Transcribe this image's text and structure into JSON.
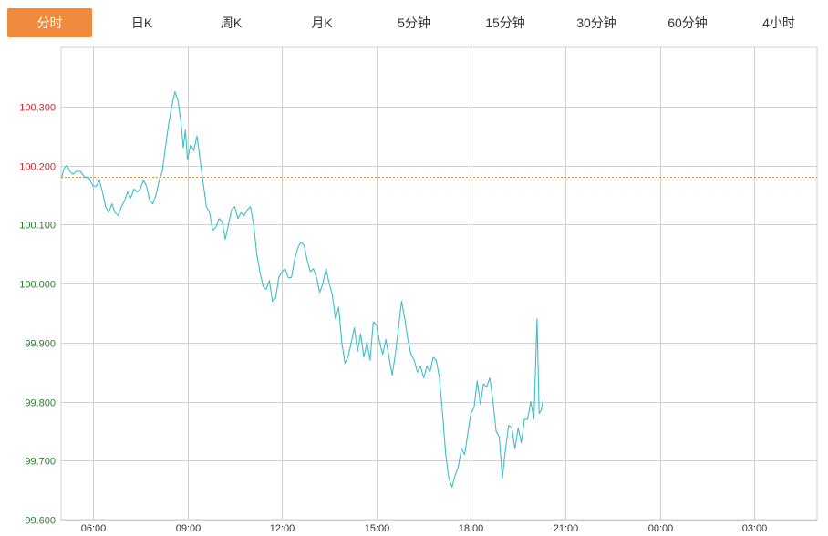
{
  "tabs": [
    {
      "label": "分时",
      "active": true
    },
    {
      "label": "日K",
      "active": false
    },
    {
      "label": "周K",
      "active": false
    },
    {
      "label": "月K",
      "active": false
    },
    {
      "label": "5分钟",
      "active": false
    },
    {
      "label": "15分钟",
      "active": false
    },
    {
      "label": "30分钟",
      "active": false
    },
    {
      "label": "60分钟",
      "active": false
    },
    {
      "label": "4小时",
      "active": false
    }
  ],
  "colors": {
    "line": "#3cbfc8",
    "reference": "#f08a3c",
    "up": "#d9232a",
    "down": "#2e7d32",
    "grid": "#d0d0d0",
    "active_tab": "#f08a3c"
  },
  "chart_data": {
    "type": "line",
    "x_ticks": [
      "06:00",
      "09:00",
      "12:00",
      "15:00",
      "18:00",
      "21:00",
      "00:00",
      "03:00"
    ],
    "y_ticks": [
      "100.300",
      "100.200",
      "100.100",
      "100.000",
      "99.900",
      "99.800",
      "99.700",
      "99.600"
    ],
    "y_tick_values": [
      100.3,
      100.2,
      100.1,
      100.0,
      99.9,
      99.8,
      99.7,
      99.6
    ],
    "ylim": [
      99.6,
      100.4
    ],
    "xlim_hours_from_0500": [
      0,
      24
    ],
    "reference_value": 100.18,
    "series": [
      {
        "points": [
          [
            "05:00",
            100.18
          ],
          [
            "05:05",
            100.195
          ],
          [
            "05:10",
            100.2
          ],
          [
            "05:16",
            100.19
          ],
          [
            "05:22",
            100.185
          ],
          [
            "05:28",
            100.19
          ],
          [
            "05:36",
            100.19
          ],
          [
            "05:44",
            100.18
          ],
          [
            "05:52",
            100.18
          ],
          [
            "06:00",
            100.165
          ],
          [
            "06:06",
            100.165
          ],
          [
            "06:12",
            100.175
          ],
          [
            "06:18",
            100.155
          ],
          [
            "06:24",
            100.13
          ],
          [
            "06:30",
            100.12
          ],
          [
            "06:36",
            100.135
          ],
          [
            "06:42",
            100.12
          ],
          [
            "06:48",
            100.115
          ],
          [
            "06:54",
            100.13
          ],
          [
            "07:00",
            100.14
          ],
          [
            "07:06",
            100.155
          ],
          [
            "07:12",
            100.145
          ],
          [
            "07:18",
            100.16
          ],
          [
            "07:24",
            100.155
          ],
          [
            "07:30",
            100.16
          ],
          [
            "07:36",
            100.175
          ],
          [
            "07:42",
            100.165
          ],
          [
            "07:48",
            100.14
          ],
          [
            "07:54",
            100.135
          ],
          [
            "08:00",
            100.15
          ],
          [
            "08:06",
            100.175
          ],
          [
            "08:12",
            100.19
          ],
          [
            "08:18",
            100.23
          ],
          [
            "08:24",
            100.27
          ],
          [
            "08:30",
            100.3
          ],
          [
            "08:36",
            100.325
          ],
          [
            "08:42",
            100.31
          ],
          [
            "08:48",
            100.27
          ],
          [
            "08:52",
            100.23
          ],
          [
            "08:56",
            100.26
          ],
          [
            "09:00",
            100.21
          ],
          [
            "09:06",
            100.235
          ],
          [
            "09:12",
            100.225
          ],
          [
            "09:18",
            100.25
          ],
          [
            "09:24",
            100.21
          ],
          [
            "09:30",
            100.17
          ],
          [
            "09:36",
            100.13
          ],
          [
            "09:42",
            100.12
          ],
          [
            "09:48",
            100.09
          ],
          [
            "09:54",
            100.095
          ],
          [
            "10:00",
            100.11
          ],
          [
            "10:06",
            100.105
          ],
          [
            "10:12",
            100.075
          ],
          [
            "10:18",
            100.1
          ],
          [
            "10:24",
            100.125
          ],
          [
            "10:30",
            100.13
          ],
          [
            "10:36",
            100.11
          ],
          [
            "10:42",
            100.12
          ],
          [
            "10:48",
            100.115
          ],
          [
            "10:54",
            100.125
          ],
          [
            "11:00",
            100.13
          ],
          [
            "11:06",
            100.1
          ],
          [
            "11:12",
            100.05
          ],
          [
            "11:18",
            100.02
          ],
          [
            "11:24",
            99.995
          ],
          [
            "11:30",
            99.99
          ],
          [
            "11:36",
            100.005
          ],
          [
            "11:42",
            99.97
          ],
          [
            "11:48",
            99.975
          ],
          [
            "11:54",
            100.01
          ],
          [
            "12:00",
            100.02
          ],
          [
            "12:06",
            100.025
          ],
          [
            "12:12",
            100.01
          ],
          [
            "12:18",
            100.01
          ],
          [
            "12:24",
            100.04
          ],
          [
            "12:30",
            100.06
          ],
          [
            "12:36",
            100.07
          ],
          [
            "12:42",
            100.065
          ],
          [
            "12:48",
            100.04
          ],
          [
            "12:54",
            100.02
          ],
          [
            "13:00",
            100.025
          ],
          [
            "13:06",
            100.01
          ],
          [
            "13:12",
            99.985
          ],
          [
            "13:18",
            100.0
          ],
          [
            "13:24",
            100.025
          ],
          [
            "13:30",
            100.0
          ],
          [
            "13:36",
            99.98
          ],
          [
            "13:42",
            99.94
          ],
          [
            "13:48",
            99.96
          ],
          [
            "13:54",
            99.9
          ],
          [
            "14:00",
            99.865
          ],
          [
            "14:06",
            99.875
          ],
          [
            "14:12",
            99.9
          ],
          [
            "14:18",
            99.925
          ],
          [
            "14:24",
            99.885
          ],
          [
            "14:30",
            99.915
          ],
          [
            "14:36",
            99.875
          ],
          [
            "14:42",
            99.9
          ],
          [
            "14:48",
            99.87
          ],
          [
            "14:54",
            99.935
          ],
          [
            "15:00",
            99.93
          ],
          [
            "15:06",
            99.9
          ],
          [
            "15:12",
            99.88
          ],
          [
            "15:18",
            99.905
          ],
          [
            "15:24",
            99.875
          ],
          [
            "15:30",
            99.845
          ],
          [
            "15:36",
            99.88
          ],
          [
            "15:42",
            99.925
          ],
          [
            "15:48",
            99.97
          ],
          [
            "15:54",
            99.94
          ],
          [
            "16:00",
            99.905
          ],
          [
            "16:06",
            99.88
          ],
          [
            "16:12",
            99.87
          ],
          [
            "16:18",
            99.85
          ],
          [
            "16:24",
            99.86
          ],
          [
            "16:30",
            99.84
          ],
          [
            "16:36",
            99.86
          ],
          [
            "16:42",
            99.85
          ],
          [
            "16:48",
            99.875
          ],
          [
            "16:54",
            99.87
          ],
          [
            "17:00",
            99.84
          ],
          [
            "17:06",
            99.78
          ],
          [
            "17:12",
            99.71
          ],
          [
            "17:18",
            99.67
          ],
          [
            "17:24",
            99.655
          ],
          [
            "17:30",
            99.675
          ],
          [
            "17:36",
            99.69
          ],
          [
            "17:42",
            99.72
          ],
          [
            "17:48",
            99.71
          ],
          [
            "17:54",
            99.745
          ],
          [
            "18:00",
            99.78
          ],
          [
            "18:06",
            99.79
          ],
          [
            "18:12",
            99.835
          ],
          [
            "18:18",
            99.795
          ],
          [
            "18:24",
            99.83
          ],
          [
            "18:30",
            99.825
          ],
          [
            "18:36",
            99.84
          ],
          [
            "18:42",
            99.8
          ],
          [
            "18:48",
            99.75
          ],
          [
            "18:54",
            99.74
          ],
          [
            "19:00",
            99.67
          ],
          [
            "19:06",
            99.72
          ],
          [
            "19:12",
            99.76
          ],
          [
            "19:18",
            99.755
          ],
          [
            "19:24",
            99.72
          ],
          [
            "19:30",
            99.755
          ],
          [
            "19:36",
            99.73
          ],
          [
            "19:42",
            99.77
          ],
          [
            "19:48",
            99.77
          ],
          [
            "19:54",
            99.8
          ],
          [
            "20:00",
            99.77
          ],
          [
            "20:06",
            99.94
          ],
          [
            "20:10",
            99.78
          ],
          [
            "20:14",
            99.785
          ],
          [
            "20:18",
            99.805
          ]
        ]
      }
    ]
  }
}
